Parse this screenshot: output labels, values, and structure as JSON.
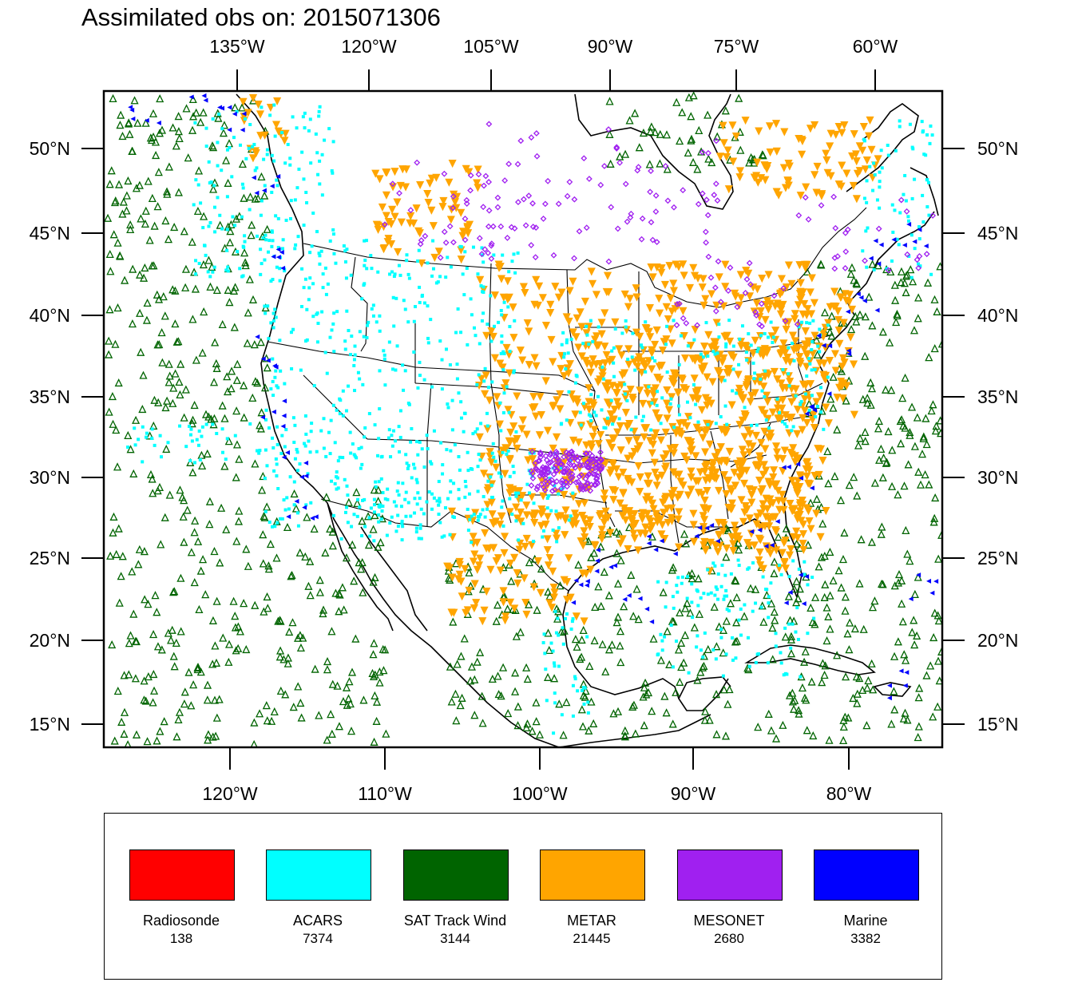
{
  "title": "Assimilated obs on: 2015071306",
  "top_lon_ticks": [
    "135°W",
    "120°W",
    "105°W",
    "90°W",
    "75°W",
    "60°W"
  ],
  "bottom_lon_ticks": [
    "120°W",
    "110°W",
    "100°W",
    "90°W",
    "80°W"
  ],
  "lat_ticks": [
    "50°N",
    "45°N",
    "40°N",
    "35°N",
    "30°N",
    "25°N",
    "20°N",
    "15°N"
  ],
  "colors": {
    "radiosonde": "#ff0000",
    "acars": "#00ffff",
    "sat_track_wind": "#006400",
    "metar": "#ffa500",
    "mesonet": "#a020f0",
    "marine": "#0000ff",
    "border": "#000000"
  },
  "legend": [
    {
      "label": "Radiosonde",
      "count": "138",
      "color": "#ff0000"
    },
    {
      "label": "ACARS",
      "count": "7374",
      "color": "#00ffff"
    },
    {
      "label": "SAT Track Wind",
      "count": "3144",
      "color": "#006400"
    },
    {
      "label": "METAR",
      "count": "21445",
      "color": "#ffa500"
    },
    {
      "label": "MESONET",
      "count": "2680",
      "color": "#a020f0"
    },
    {
      "label": "Marine",
      "count": "3382",
      "color": "#0000ff"
    }
  ]
}
